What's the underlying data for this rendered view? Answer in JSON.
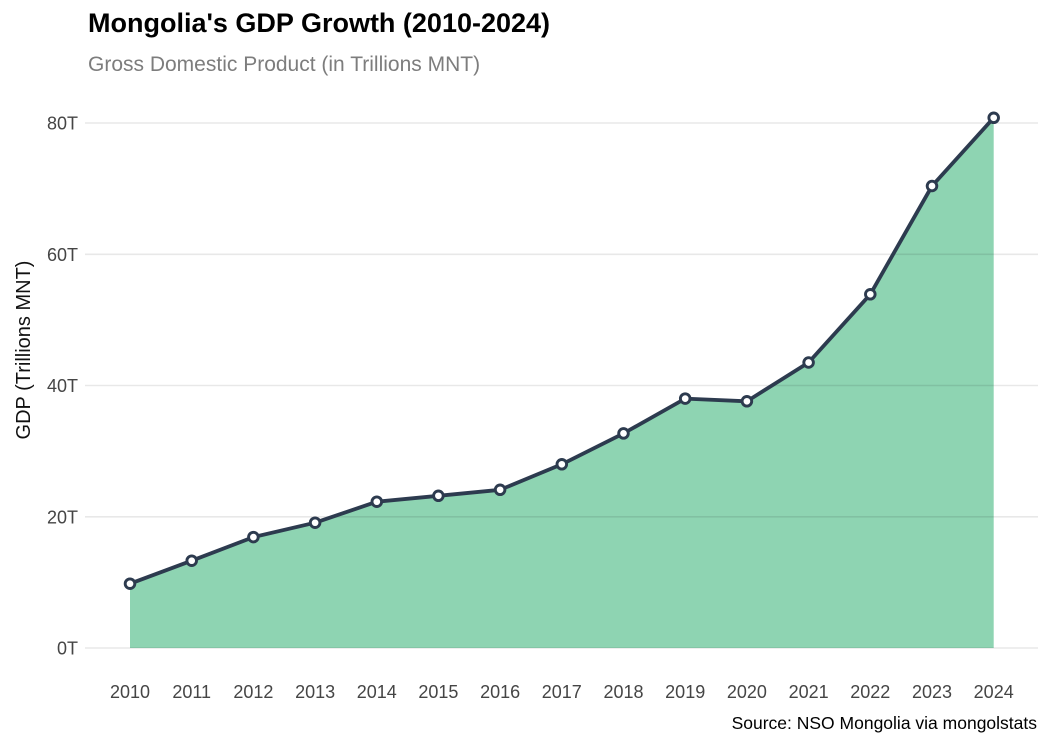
{
  "chart_data": {
    "type": "area",
    "title": "Mongolia's GDP Growth (2010-2024)",
    "subtitle": "Gross Domestic Product (in Trillions MNT)",
    "source": "Source: NSO Mongolia via mongolstats",
    "xlabel": "",
    "ylabel": "GDP (Trillions MNT)",
    "x": [
      "2010",
      "2011",
      "2012",
      "2013",
      "2014",
      "2015",
      "2016",
      "2017",
      "2018",
      "2019",
      "2020",
      "2021",
      "2022",
      "2023",
      "2024"
    ],
    "series": [
      {
        "name": "GDP (Trillions MNT)",
        "values": [
          9.8,
          13.3,
          16.9,
          19.1,
          22.3,
          23.2,
          24.1,
          28.0,
          32.7,
          38.0,
          37.6,
          43.5,
          53.9,
          70.4,
          80.8
        ]
      }
    ],
    "ylim": [
      0,
      80
    ],
    "yticks": {
      "values": [
        0,
        20,
        40,
        60,
        80
      ],
      "labels": [
        "0T",
        "20T",
        "40T",
        "60T",
        "80T"
      ]
    },
    "grid": "horizontal-major-only",
    "legend": "none",
    "marker": "open-circle",
    "colors": {
      "area": "#8ed4b2",
      "line": "#2d3b4f",
      "marker_fill": "#ffffff",
      "marker_stroke": "#2d3b4f",
      "grid": "#e8e8e8",
      "tick_text": "#454545",
      "axis_title_text": "#111111",
      "title_text": "#000000",
      "subtitle_text": "#7d7d7d",
      "source_text": "#000000",
      "background": "#ffffff"
    }
  }
}
